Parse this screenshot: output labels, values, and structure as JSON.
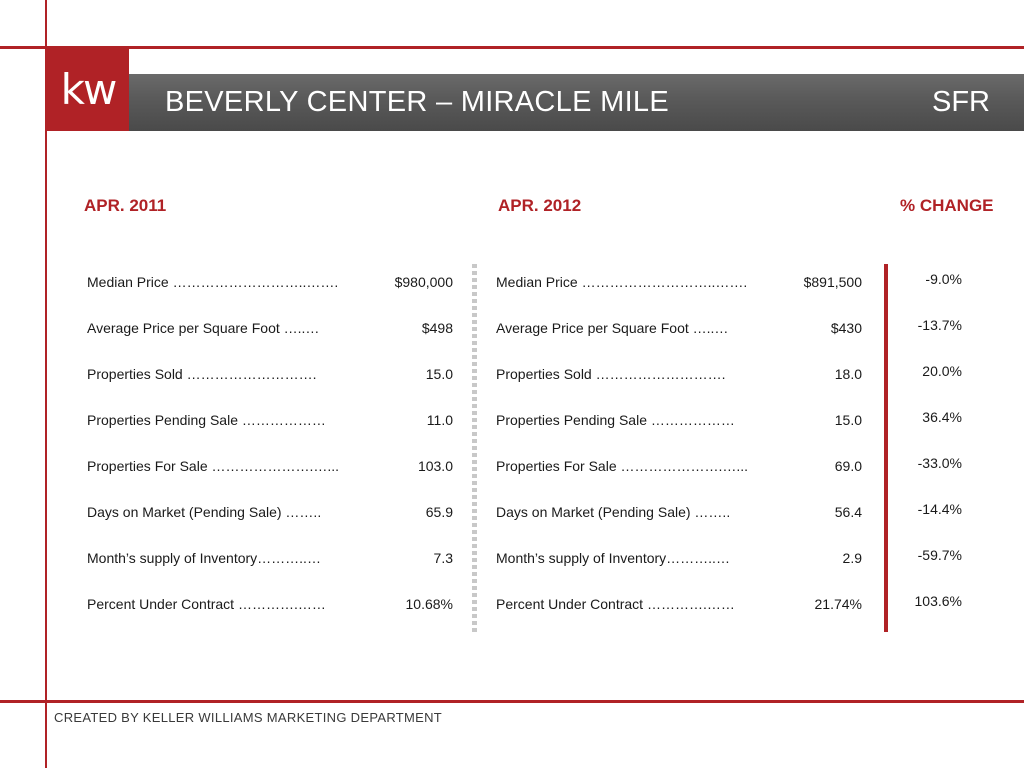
{
  "header": {
    "logo_text": "kw",
    "title": "BEVERLY CENTER – MIRACLE MILE",
    "subtitle_right": "SFR"
  },
  "columns": {
    "left_header": "APR. 2011",
    "middle_header": "APR. 2012",
    "change_header": "% CHANGE"
  },
  "rows": [
    {
      "label": "Median Price ………………………..…….",
      "val_2011": "$980,000",
      "val_2012": "$891,500",
      "change": "-9.0%"
    },
    {
      "label": "Average Price per Square Foot …..…",
      "val_2011": "$498",
      "val_2012": "$430",
      "change": "-13.7%"
    },
    {
      "label": "Properties Sold ……………………….",
      "val_2011": "15.0",
      "val_2012": "18.0",
      "change": "20.0%"
    },
    {
      "label": "Properties Pending Sale ………………",
      "val_2011": "11.0",
      "val_2012": "15.0",
      "change": "36.4%"
    },
    {
      "label": "Properties For Sale ………………….…...",
      "val_2011": "103.0",
      "val_2012": "69.0",
      "change": "-33.0%"
    },
    {
      "label": "Days on Market (Pending Sale) ……..",
      "val_2011": "65.9",
      "val_2012": "56.4",
      "change": "-14.4%"
    },
    {
      "label": "Month’s supply of Inventory………..…",
      "val_2011": "7.3",
      "val_2012": "2.9",
      "change": "-59.7%"
    },
    {
      "label": "Percent Under Contract ………….……",
      "val_2011": "10.68%",
      "val_2012": "21.74%",
      "change": "103.6%"
    }
  ],
  "footer": {
    "text": "CREATED BY KELLER WILLIAMS MARKETING DEPARTMENT"
  },
  "colors": {
    "accent_red": "#b02226",
    "title_bar_gray": "#5b5b5b"
  }
}
